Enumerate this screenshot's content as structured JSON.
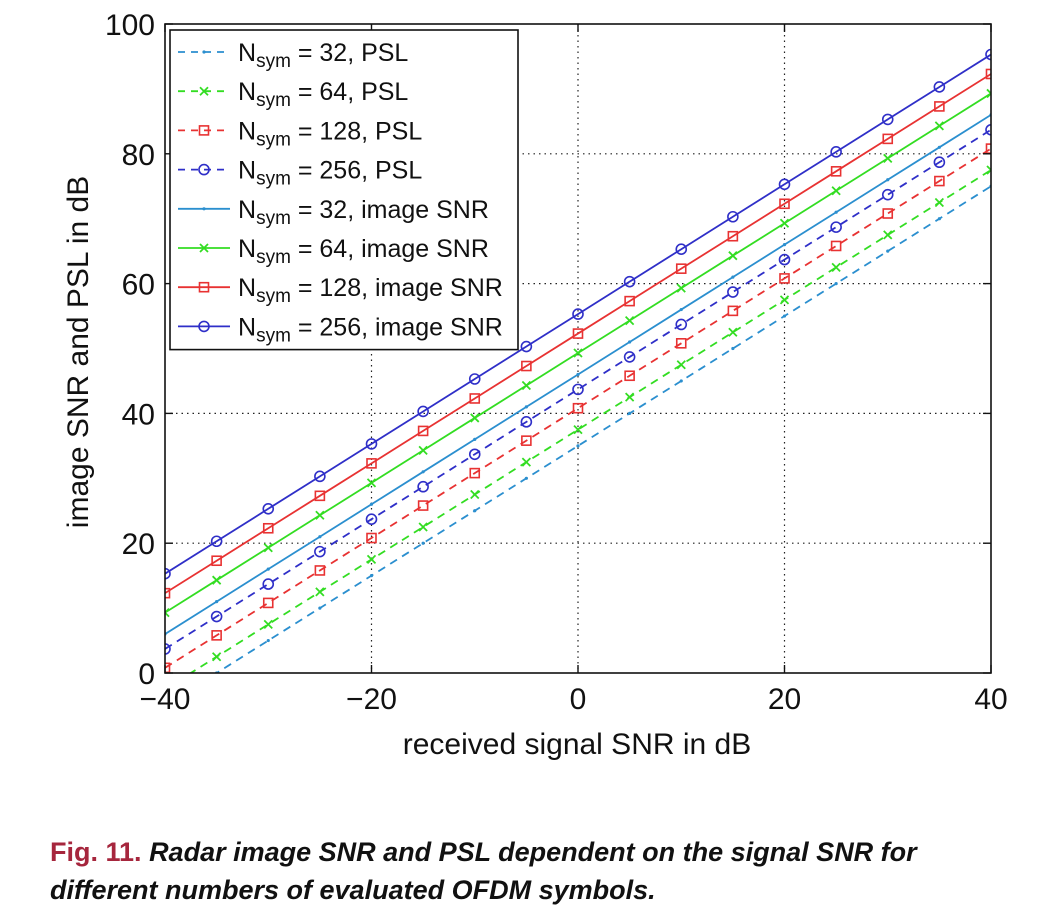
{
  "chart_data": {
    "type": "line",
    "xlabel": "received signal SNR in dB",
    "ylabel": "image SNR and PSL in dB",
    "xlim": [
      -40,
      40
    ],
    "ylim": [
      0,
      100
    ],
    "xticks": [
      -40,
      -20,
      0,
      20,
      40
    ],
    "xtick_labels": [
      "−40",
      "−20",
      "0",
      "20",
      "40"
    ],
    "yticks": [
      0,
      20,
      40,
      60,
      80,
      100
    ],
    "ytick_labels": [
      "0",
      "20",
      "40",
      "60",
      "80",
      "100"
    ],
    "grid": true,
    "legend_position": "top-left",
    "x": [
      -40,
      -35,
      -30,
      -25,
      -20,
      -15,
      -10,
      -5,
      0,
      5,
      10,
      15,
      20,
      25,
      30,
      35,
      40
    ],
    "series": [
      {
        "name_main": "N",
        "name_sub": "sym",
        "name_rest": " = 32, PSL",
        "color": "#2b8fcf",
        "dash": "dashed",
        "marker": "point",
        "start": -5.0,
        "slope": 1.0
      },
      {
        "name_main": "N",
        "name_sub": "sym",
        "name_rest": " = 64, PSL",
        "color": "#33dd22",
        "dash": "dashed",
        "marker": "x",
        "start": -2.5,
        "slope": 1.0
      },
      {
        "name_main": "N",
        "name_sub": "sym",
        "name_rest": " = 128, PSL",
        "color": "#e83232",
        "dash": "dashed",
        "marker": "square",
        "start": 0.8,
        "slope": 1.0
      },
      {
        "name_main": "N",
        "name_sub": "sym",
        "name_rest": " = 256, PSL",
        "color": "#2f2fc8",
        "dash": "dashed",
        "marker": "circle",
        "start": 3.7,
        "slope": 1.0
      },
      {
        "name_main": "N",
        "name_sub": "sym",
        "name_rest": " = 32, image SNR",
        "color": "#2b8fcf",
        "dash": "solid",
        "marker": "point",
        "start": 6.0,
        "slope": 1.0
      },
      {
        "name_main": "N",
        "name_sub": "sym",
        "name_rest": " = 64, image SNR",
        "color": "#33dd22",
        "dash": "solid",
        "marker": "x",
        "start": 9.3,
        "slope": 1.0
      },
      {
        "name_main": "N",
        "name_sub": "sym",
        "name_rest": " = 128, image SNR",
        "color": "#e83232",
        "dash": "solid",
        "marker": "square",
        "start": 12.3,
        "slope": 1.0
      },
      {
        "name_main": "N",
        "name_sub": "sym",
        "name_rest": " = 256, image SNR",
        "color": "#2f2fc8",
        "dash": "solid",
        "marker": "circle",
        "start": 15.3,
        "slope": 1.0
      }
    ]
  },
  "caption": {
    "label": "Fig. 11.",
    "text": "Radar image SNR and PSL dependent on the signal SNR for different numbers of evaluated OFDM symbols.",
    "label_color": "#a6263d"
  }
}
